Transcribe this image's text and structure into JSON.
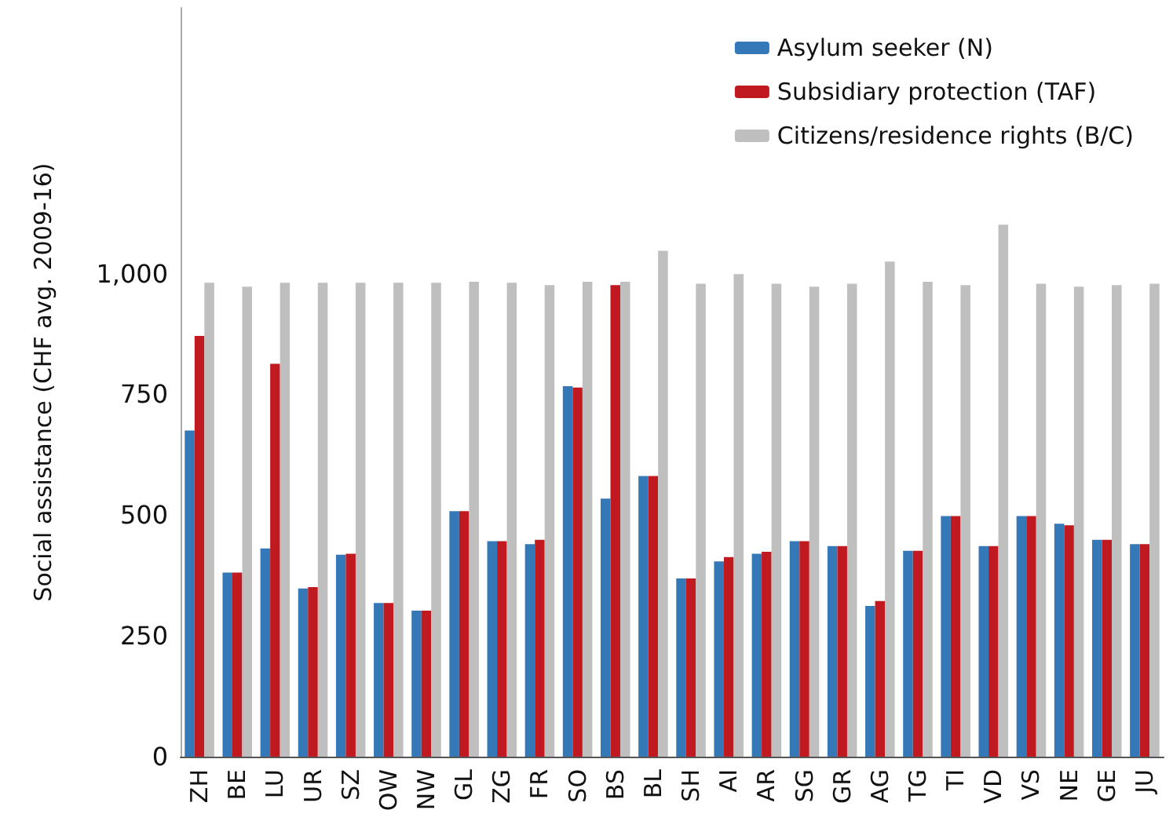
{
  "chart_data": {
    "type": "bar",
    "ylabel": "Social assistance (CHF avg. 2009-16)",
    "categories": [
      "ZH",
      "BE",
      "LU",
      "UR",
      "SZ",
      "OW",
      "NW",
      "GL",
      "ZG",
      "FR",
      "SO",
      "BS",
      "BL",
      "SH",
      "AI",
      "AR",
      "SG",
      "GR",
      "AG",
      "TG",
      "TI",
      "VD",
      "VS",
      "NE",
      "GE",
      "JU"
    ],
    "series": [
      {
        "name": "Asylum seeker (N)",
        "color": "#3478b8",
        "values": [
          675,
          381,
          431,
          348,
          418,
          318,
          302,
          508,
          446,
          440,
          767,
          534,
          581,
          369,
          404,
          420,
          446,
          436,
          312,
          426,
          498,
          436,
          498,
          482,
          449,
          440
        ]
      },
      {
        "name": "Subsidiary protection (TAF)",
        "color": "#c0191f",
        "values": [
          871,
          381,
          813,
          351,
          420,
          318,
          302,
          508,
          446,
          449,
          764,
          976,
          581,
          369,
          413,
          424,
          446,
          436,
          322,
          426,
          498,
          436,
          498,
          479,
          449,
          440
        ]
      },
      {
        "name": "Citizens/residence rights (B/C)",
        "color": "#bfbfbf",
        "values": [
          981,
          973,
          981,
          981,
          981,
          981,
          981,
          983,
          981,
          976,
          983,
          983,
          1047,
          979,
          999,
          979,
          973,
          979,
          1025,
          983,
          976,
          1101,
          979,
          973,
          976,
          979
        ]
      }
    ],
    "ylim": [
      0,
      1550
    ],
    "yticks": [
      0,
      {
        "value": 250,
        "label": "250"
      },
      {
        "value": 500,
        "label": "500"
      },
      {
        "value": 750,
        "label": "750"
      },
      {
        "value": 1000,
        "label": "1,000"
      }
    ],
    "grid": false,
    "legend": "top right"
  }
}
